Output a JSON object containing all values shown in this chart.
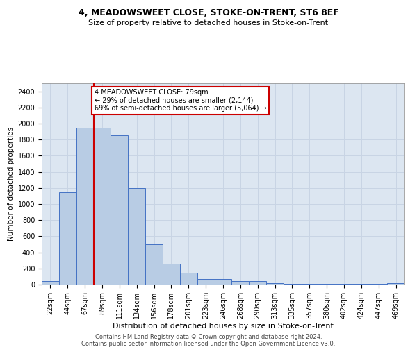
{
  "title": "4, MEADOWSWEET CLOSE, STOKE-ON-TRENT, ST6 8EF",
  "subtitle": "Size of property relative to detached houses in Stoke-on-Trent",
  "xlabel": "Distribution of detached houses by size in Stoke-on-Trent",
  "ylabel": "Number of detached properties",
  "footer1": "Contains HM Land Registry data © Crown copyright and database right 2024.",
  "footer2": "Contains public sector information licensed under the Open Government Licence v3.0.",
  "bar_labels": [
    "22sqm",
    "44sqm",
    "67sqm",
    "89sqm",
    "111sqm",
    "134sqm",
    "156sqm",
    "178sqm",
    "201sqm",
    "223sqm",
    "246sqm",
    "268sqm",
    "290sqm",
    "313sqm",
    "335sqm",
    "357sqm",
    "380sqm",
    "402sqm",
    "424sqm",
    "447sqm",
    "469sqm"
  ],
  "bar_values": [
    40,
    1150,
    1950,
    1950,
    1850,
    1200,
    500,
    260,
    150,
    70,
    70,
    40,
    40,
    15,
    10,
    5,
    5,
    5,
    5,
    5,
    20
  ],
  "bar_color": "#b8cce4",
  "bar_edge_color": "#4472c4",
  "grid_color": "#c8d4e4",
  "background_color": "#dce6f1",
  "vline_color": "#cc0000",
  "vline_position": 2.5,
  "annotation_text": "4 MEADOWSWEET CLOSE: 79sqm\n← 29% of detached houses are smaller (2,144)\n69% of semi-detached houses are larger (5,064) →",
  "annotation_box_color": "#ffffff",
  "annotation_border_color": "#cc0000",
  "ylim": [
    0,
    2500
  ],
  "yticks": [
    0,
    200,
    400,
    600,
    800,
    1000,
    1200,
    1400,
    1600,
    1800,
    2000,
    2200,
    2400
  ],
  "title_fontsize": 9,
  "subtitle_fontsize": 8,
  "xlabel_fontsize": 8,
  "ylabel_fontsize": 7.5,
  "tick_fontsize": 7,
  "annot_fontsize": 7
}
